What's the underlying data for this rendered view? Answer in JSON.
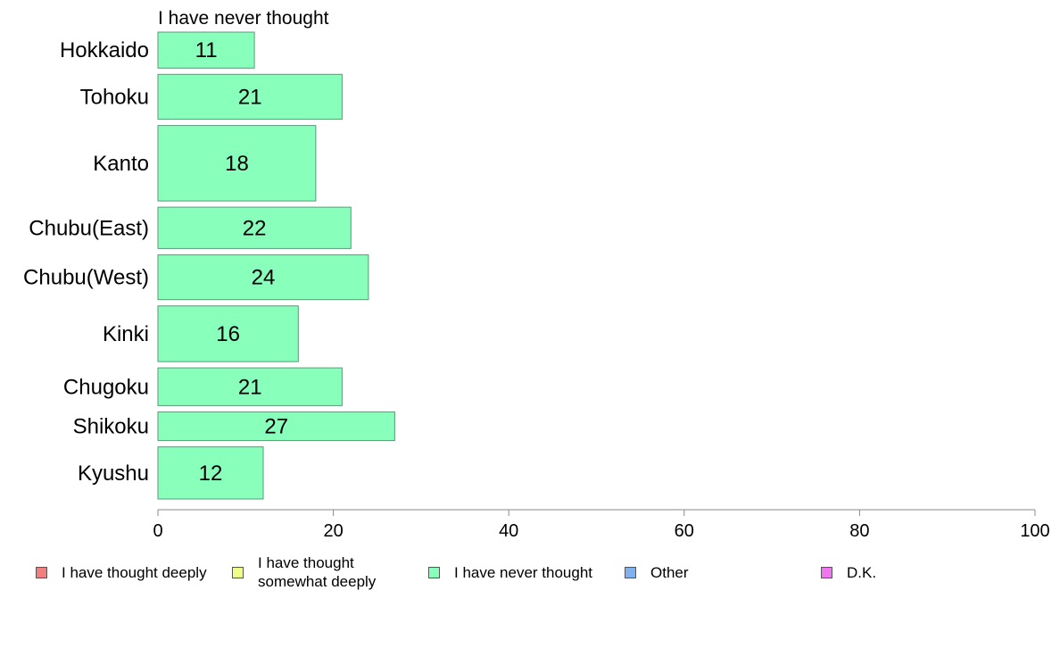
{
  "chart_data": {
    "type": "bar",
    "orientation": "horizontal",
    "subtitle": "I have never thought",
    "categories": [
      "Hokkaido",
      "Tohoku",
      "Kanto",
      "Chubu(East)",
      "Chubu(West)",
      "Kinki",
      "Chugoku",
      "Shikoku",
      "Kyushu"
    ],
    "series": [
      {
        "name": "I have never thought",
        "values": [
          11,
          21,
          18,
          22,
          24,
          16,
          21,
          27,
          12
        ]
      }
    ],
    "bar_labels": [
      "11",
      "21",
      "18",
      "22",
      "24",
      "16",
      "21",
      "27",
      "12"
    ],
    "relative_bar_widths": [
      1.0,
      1.25,
      2.1,
      1.15,
      1.25,
      1.55,
      1.05,
      0.8,
      1.45
    ],
    "xlim": [
      0,
      100
    ],
    "x_ticks": [
      0,
      20,
      40,
      60,
      80,
      100
    ],
    "x_tick_labels": [
      "0",
      "20",
      "40",
      "60",
      "80",
      "100"
    ],
    "grid": false,
    "bar_color": "#88ffbb",
    "bar_edge_color": "#5a9a78",
    "legend_position": "bottom",
    "legend": [
      {
        "label": "I have thought deeply",
        "color": "#f08080"
      },
      {
        "label": "I have thought\nsomewhat deeply",
        "color": "#eeff88"
      },
      {
        "label": "I have never thought",
        "color": "#88ffbb"
      },
      {
        "label": "Other",
        "color": "#80b0f0"
      },
      {
        "label": "D.K.",
        "color": "#ee77ee"
      }
    ]
  }
}
